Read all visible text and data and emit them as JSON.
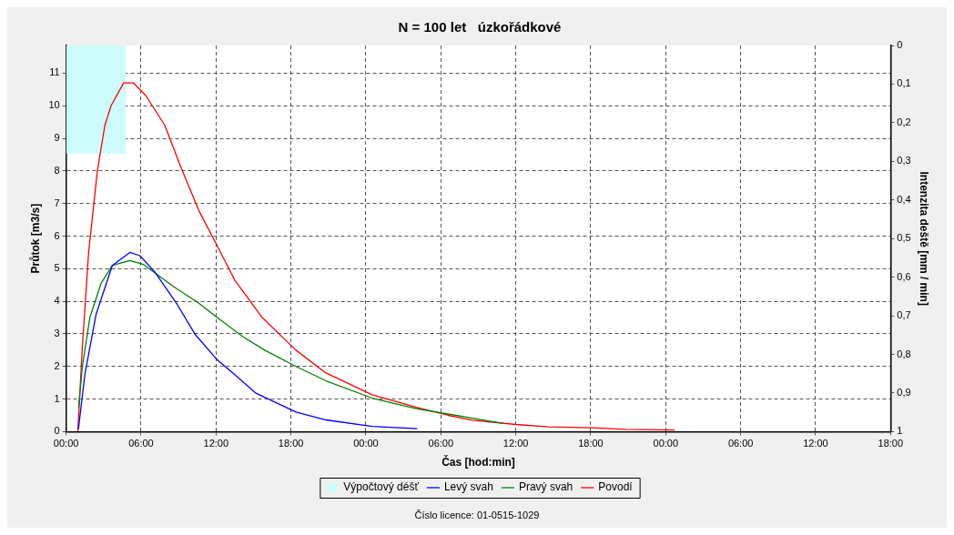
{
  "chart_data": {
    "type": "line",
    "title": "N = 100 let   úzkořádkové",
    "xlabel": "Čas [hod:min]",
    "ylabel": "Průtok [m3/s]",
    "y2label": "Intenzita deště [mm / min]",
    "xlim": [
      "--01-01T00:00",
      "--01-03T18:00"
    ],
    "xticks": [
      {
        "value": "--01-01T00:00",
        "label": "00:00"
      },
      {
        "value": "--01-01T06:00",
        "label": "06:00"
      },
      {
        "value": "--01-01T12:00",
        "label": "12:00"
      },
      {
        "value": "--01-01T18:00",
        "label": "18:00"
      },
      {
        "value": "--01-02T00:00",
        "label": "00:00"
      },
      {
        "value": "--01-02T06:00",
        "label": "06:00"
      },
      {
        "value": "--01-02T12:00",
        "label": "12:00"
      },
      {
        "value": "--01-02T18:00",
        "label": "18:00"
      },
      {
        "value": "--01-03T00:00",
        "label": "00:00"
      },
      {
        "value": "--01-03T06:00",
        "label": "06:00"
      },
      {
        "value": "--01-03T12:00",
        "label": "12:00"
      },
      {
        "value": "--01-03T18:00",
        "label": "18:00"
      }
    ],
    "ylim": [
      0,
      11.85
    ],
    "yticks": [
      0,
      1,
      2,
      3,
      4,
      5,
      6,
      7,
      8,
      9,
      10,
      11
    ],
    "y2lim": [
      1,
      0
    ],
    "y2ticks": [
      {
        "value": 0,
        "label": "0"
      },
      {
        "value": 0.1,
        "label": "0,1"
      },
      {
        "value": 0.2,
        "label": "0,2"
      },
      {
        "value": 0.3,
        "label": "0,3"
      },
      {
        "value": 0.4,
        "label": "0,4"
      },
      {
        "value": 0.5,
        "label": "0,5"
      },
      {
        "value": 0.6,
        "label": "0,6"
      },
      {
        "value": 0.7,
        "label": "0,7"
      },
      {
        "value": 0.8,
        "label": "0,8"
      },
      {
        "value": 0.9,
        "label": "0,9"
      },
      {
        "value": 1,
        "label": "1"
      }
    ],
    "grid": true,
    "legend": "bottom",
    "marker": "none",
    "line_style": "solid",
    "annotations": [
      "Číslo licence: 01-0515-1029"
    ],
    "series": [
      {
        "name": "Výpočtový déšť",
        "type": "area",
        "axis": "y2",
        "color": "#ccfcfc",
        "x": [
          "--01-01T00:00",
          "--01-01T04:48"
        ],
        "values": [
          0.28,
          0.28
        ]
      },
      {
        "name": "Levý svah",
        "color": "#0000ff",
        "x": [
          "--01-01T00:59",
          "--01-01T01:30",
          "--01-01T02:24",
          "--01-01T03:42",
          "--01-01T05:06",
          "--01-01T05:54",
          "--01-01T07:06",
          "--01-01T08:54",
          "--01-01T10:18",
          "--01-01T12:06",
          "--01-01T13:30",
          "--01-01T15:12",
          "--01-01T18:24",
          "--01-01T20:48",
          "--01-02T00:30",
          "--01-02T04:06"
        ],
        "values": [
          0.07,
          1.75,
          3.6,
          5.1,
          5.5,
          5.4,
          4.9,
          3.9,
          3.0,
          2.2,
          1.75,
          1.18,
          0.6,
          0.36,
          0.16,
          0.09
        ]
      },
      {
        "name": "Pravý svah",
        "color": "#008000",
        "x": [
          "--01-01T01:00",
          "--01-01T01:18",
          "--01-01T01:54",
          "--01-01T02:48",
          "--01-01T03:42",
          "--01-01T05:06",
          "--01-01T06:12",
          "--01-01T08:36",
          "--01-01T10:36",
          "--01-01T12:06",
          "--01-01T14:12",
          "--01-01T15:54",
          "--01-01T18:24",
          "--01-01T20:48",
          "--01-02T00:30",
          "--01-02T04:06",
          "--01-02T08:00",
          "--01-02T11:00"
        ],
        "values": [
          0.74,
          2.0,
          3.5,
          4.55,
          5.1,
          5.25,
          5.13,
          4.45,
          3.95,
          3.5,
          2.9,
          2.5,
          2.0,
          1.56,
          1.03,
          0.7,
          0.45,
          0.25
        ]
      },
      {
        "name": "Povodí",
        "color": "#ff0000",
        "x": [
          "--01-01T00:56",
          "--01-01T01:18",
          "--01-01T01:48",
          "--01-01T02:30",
          "--01-01T03:06",
          "--01-01T03:36",
          "--01-01T04:36",
          "--01-01T05:24",
          "--01-01T06:24",
          "--01-01T07:54",
          "--01-01T09:06",
          "--01-01T10:36",
          "--01-01T12:06",
          "--01-01T13:30",
          "--01-01T15:42",
          "--01-01T18:24",
          "--01-01T20:48",
          "--01-02T00:30",
          "--01-02T04:06",
          "--01-02T06:36",
          "--01-02T08:30",
          "--01-02T12:00",
          "--01-02T14:36",
          "--01-02T18:00",
          "--01-02T20:48",
          "--01-03T00:42"
        ],
        "values": [
          0,
          2.6,
          5.5,
          8.0,
          9.4,
          10.0,
          10.7,
          10.7,
          10.3,
          9.4,
          8.2,
          6.8,
          5.7,
          4.65,
          3.5,
          2.5,
          1.8,
          1.13,
          0.74,
          0.5,
          0.35,
          0.22,
          0.15,
          0.12,
          0.07,
          0.05
        ]
      }
    ]
  }
}
